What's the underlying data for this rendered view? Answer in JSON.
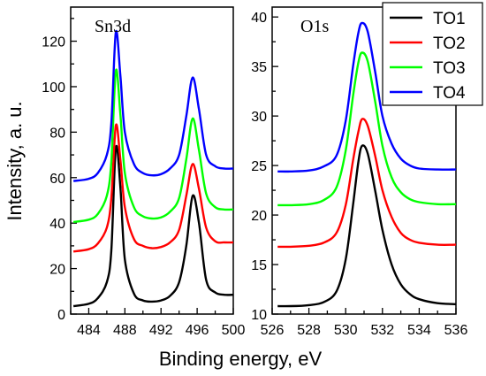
{
  "chart_data": [
    {
      "type": "line",
      "title": "Sn3d",
      "xlabel": "Binding energy, eV",
      "ylabel": "Intensity, a. u.",
      "xlim": [
        482,
        500
      ],
      "ylim": [
        0,
        135
      ],
      "xticks": [
        484,
        488,
        492,
        496,
        500
      ],
      "yticks": [
        0,
        20,
        40,
        60,
        80,
        100,
        120
      ],
      "series": [
        {
          "name": "TO1",
          "color": "#000000",
          "x": [
            482.3,
            484,
            485,
            486,
            486.5,
            487.0,
            487.5,
            488,
            489,
            490,
            491,
            492,
            493,
            494,
            494.8,
            495.5,
            496.2,
            497,
            498,
            499,
            500
          ],
          "y": [
            3.5,
            4.5,
            7,
            14,
            28,
            73,
            56,
            24,
            9,
            6,
            5.5,
            6,
            8,
            14,
            30,
            52,
            40,
            15,
            9.5,
            8.5,
            8.5
          ]
        },
        {
          "name": "TO2",
          "color": "#ff0000",
          "x": [
            482.3,
            484,
            485,
            486,
            486.5,
            487.0,
            487.5,
            488,
            489,
            490,
            491,
            492,
            493,
            494,
            494.8,
            495.5,
            496.2,
            497,
            498,
            499,
            500
          ],
          "y": [
            27.5,
            28.5,
            31,
            38,
            51,
            83,
            68,
            47,
            33,
            30,
            29,
            29.5,
            31.5,
            37,
            52,
            66,
            55,
            38,
            32,
            31.5,
            31.5
          ]
        },
        {
          "name": "TO3",
          "color": "#00ff00",
          "x": [
            482.3,
            484,
            485,
            486,
            486.5,
            487.0,
            487.5,
            488,
            489,
            490,
            491,
            492,
            493,
            494,
            494.8,
            495.5,
            496.2,
            497,
            498,
            499,
            500
          ],
          "y": [
            40.5,
            41.5,
            44,
            52,
            67,
            107,
            88,
            62,
            47,
            43,
            42,
            42.5,
            45,
            51,
            68,
            86,
            72,
            53,
            47,
            46,
            46
          ]
        },
        {
          "name": "TO4",
          "color": "#0000ff",
          "x": [
            482.3,
            484,
            485,
            486,
            486.5,
            487.0,
            487.5,
            488,
            489,
            490,
            491,
            492,
            493,
            494,
            494.8,
            495.5,
            496.2,
            497,
            498,
            499,
            500
          ],
          "y": [
            58.5,
            59.5,
            62,
            70,
            84,
            124,
            105,
            80,
            66,
            62,
            61,
            61.5,
            64,
            70,
            87,
            104,
            90,
            70,
            65,
            64,
            64
          ]
        }
      ]
    },
    {
      "type": "line",
      "title": "O1s",
      "xlabel": "Binding energy, eV",
      "ylabel": "",
      "xlim": [
        526,
        536
      ],
      "ylim": [
        10,
        41
      ],
      "xticks": [
        526,
        528,
        530,
        532,
        534,
        536
      ],
      "yticks": [
        10,
        15,
        20,
        25,
        30,
        35,
        40
      ],
      "series": [
        {
          "name": "TO1",
          "color": "#000000",
          "x": [
            526.3,
            527,
            528,
            528.8,
            529.5,
            530.0,
            530.4,
            530.7,
            530.9,
            531.2,
            531.6,
            532.0,
            532.5,
            533.0,
            533.5,
            534.0,
            535.0,
            536.0
          ],
          "y": [
            10.8,
            10.8,
            10.9,
            11.2,
            12.3,
            15.5,
            21,
            25.5,
            27.0,
            26.2,
            22.5,
            18.5,
            15.0,
            13.0,
            12.0,
            11.5,
            11.1,
            11.0
          ]
        },
        {
          "name": "TO2",
          "color": "#ff0000",
          "x": [
            526.3,
            527,
            528,
            528.8,
            529.5,
            530.0,
            530.4,
            530.7,
            530.9,
            531.2,
            531.6,
            532.0,
            532.5,
            533.0,
            533.5,
            534.0,
            535.0,
            536.0
          ],
          "y": [
            16.8,
            16.8,
            16.9,
            17.2,
            18.2,
            21,
            25.5,
            28.5,
            29.7,
            29.0,
            26.0,
            22.5,
            19.8,
            18.2,
            17.5,
            17.2,
            17.0,
            17.0
          ]
        },
        {
          "name": "TO3",
          "color": "#00ff00",
          "x": [
            526.3,
            527,
            528,
            528.8,
            529.5,
            530.0,
            530.4,
            530.7,
            530.9,
            531.2,
            531.6,
            532.0,
            532.5,
            533.0,
            533.5,
            534.0,
            535.0,
            536.0
          ],
          "y": [
            21.0,
            21.0,
            21.1,
            21.5,
            22.8,
            26.5,
            32,
            35.5,
            36.4,
            35.5,
            31.5,
            27.0,
            23.8,
            22.3,
            21.6,
            21.3,
            21.1,
            21.1
          ]
        },
        {
          "name": "TO4",
          "color": "#0000ff",
          "x": [
            526.3,
            527,
            528,
            528.8,
            529.5,
            530.0,
            530.4,
            530.7,
            530.9,
            531.2,
            531.6,
            532.0,
            532.5,
            533.0,
            533.5,
            534.0,
            535.0,
            536.0
          ],
          "y": [
            24.4,
            24.4,
            24.5,
            24.9,
            26.0,
            29.5,
            35,
            38.5,
            39.4,
            38.5,
            34.5,
            30.0,
            27.2,
            25.7,
            25.0,
            24.7,
            24.6,
            24.6
          ]
        }
      ]
    }
  ]
}
